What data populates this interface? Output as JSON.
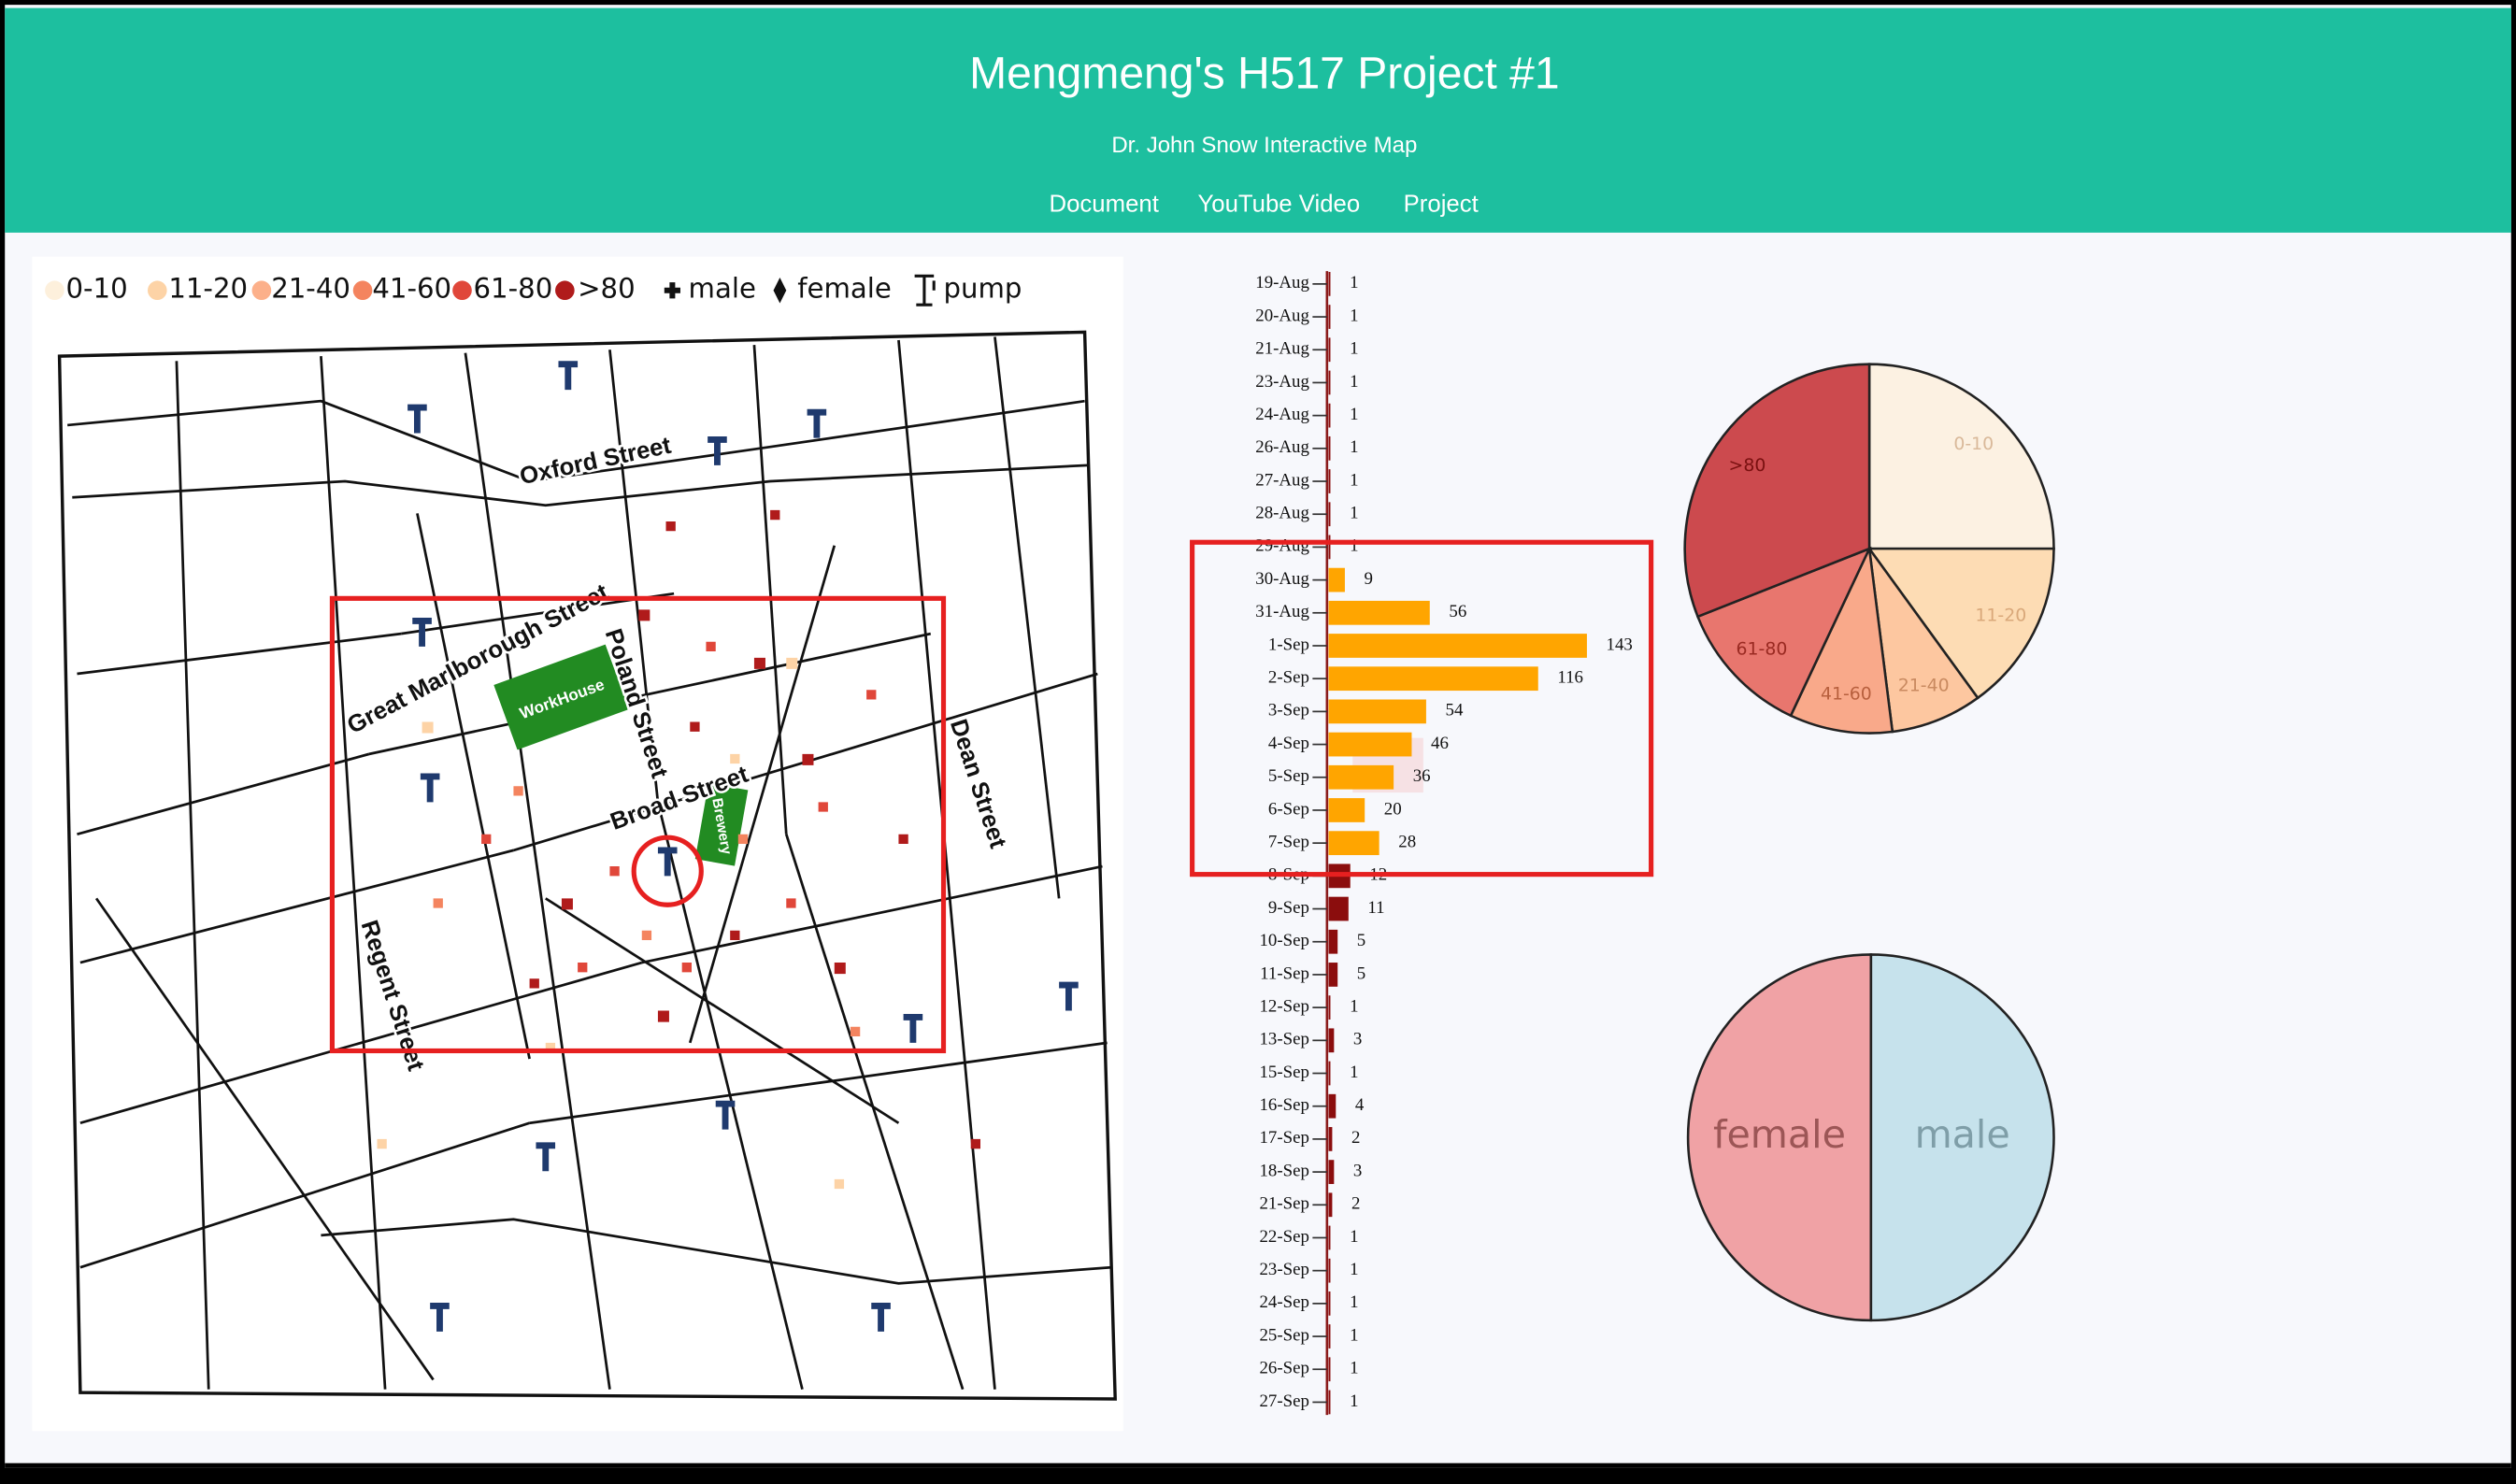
{
  "header": {
    "title": "Mengmeng's H517 Project #1",
    "subtitle": "Dr. John Snow Interactive Map",
    "nav": [
      "Document",
      "YouTube Video",
      "Project"
    ]
  },
  "map": {
    "legend": [
      "0-10",
      "11-20",
      "21-40",
      "41-60",
      "61-80",
      ">80",
      "male",
      "female",
      "pump"
    ],
    "streets": [
      "Oxford Street",
      "Great Marlborough Street",
      "Poland Street",
      "Broad Street",
      "Dean Street",
      "Regent Street"
    ],
    "buildings": [
      "WorkHouse",
      "Brewery"
    ]
  },
  "chart_data": [
    {
      "type": "bar",
      "categories": [
        "19-Aug",
        "20-Aug",
        "21-Aug",
        "23-Aug",
        "24-Aug",
        "26-Aug",
        "27-Aug",
        "28-Aug",
        "29-Aug",
        "30-Aug",
        "31-Aug",
        "1-Sep",
        "2-Sep",
        "3-Sep",
        "4-Sep",
        "5-Sep",
        "6-Sep",
        "7-Sep",
        "8-Sep",
        "9-Sep",
        "10-Sep",
        "11-Sep",
        "12-Sep",
        "13-Sep",
        "15-Sep",
        "16-Sep",
        "17-Sep",
        "18-Sep",
        "21-Sep",
        "22-Sep",
        "23-Sep",
        "24-Sep",
        "25-Sep",
        "26-Sep",
        "27-Sep"
      ],
      "values": [
        1,
        1,
        1,
        1,
        1,
        1,
        1,
        1,
        1,
        9,
        56,
        143,
        116,
        54,
        46,
        36,
        20,
        28,
        12,
        11,
        5,
        5,
        1,
        3,
        1,
        4,
        2,
        3,
        2,
        1,
        1,
        1,
        1,
        1,
        1
      ],
      "colors": [
        "#8b0d0d",
        "#8b0d0d",
        "#8b0d0d",
        "#8b0d0d",
        "#8b0d0d",
        "#8b0d0d",
        "#8b0d0d",
        "#8b0d0d",
        "#8b0d0d",
        "#ffa500",
        "#ffa500",
        "#ffa500",
        "#ffa500",
        "#ffa500",
        "#ffa500",
        "#ffa500",
        "#ffa500",
        "#ffa500",
        "#8b0d0d",
        "#8b0d0d",
        "#8b0d0d",
        "#8b0d0d",
        "#8b0d0d",
        "#8b0d0d",
        "#8b0d0d",
        "#8b0d0d",
        "#8b0d0d",
        "#8b0d0d",
        "#8b0d0d",
        "#8b0d0d",
        "#8b0d0d",
        "#8b0d0d",
        "#8b0d0d",
        "#8b0d0d",
        "#8b0d0d"
      ]
    },
    {
      "type": "pie",
      "categories": [
        "0-10",
        "11-20",
        "21-40",
        "41-60",
        "61-80",
        ">80"
      ],
      "values": [
        25,
        15,
        8,
        9,
        12,
        31
      ],
      "colors": [
        "#fcf1e2",
        "#fddcb4",
        "#fdc7a0",
        "#f9a98a",
        "#e8766e",
        "#cc4a4e"
      ],
      "label_colors": [
        "#d9b99a",
        "#d9a87a",
        "#c98a60",
        "#b8603e",
        "#9a2a22",
        "#7a1010"
      ]
    },
    {
      "type": "pie",
      "categories": [
        "male",
        "female"
      ],
      "values": [
        50,
        50
      ],
      "colors": [
        "#c6e2ec",
        "#f0a2a5"
      ],
      "label_colors": [
        "#7f9ea8",
        "#9c5656"
      ]
    }
  ]
}
